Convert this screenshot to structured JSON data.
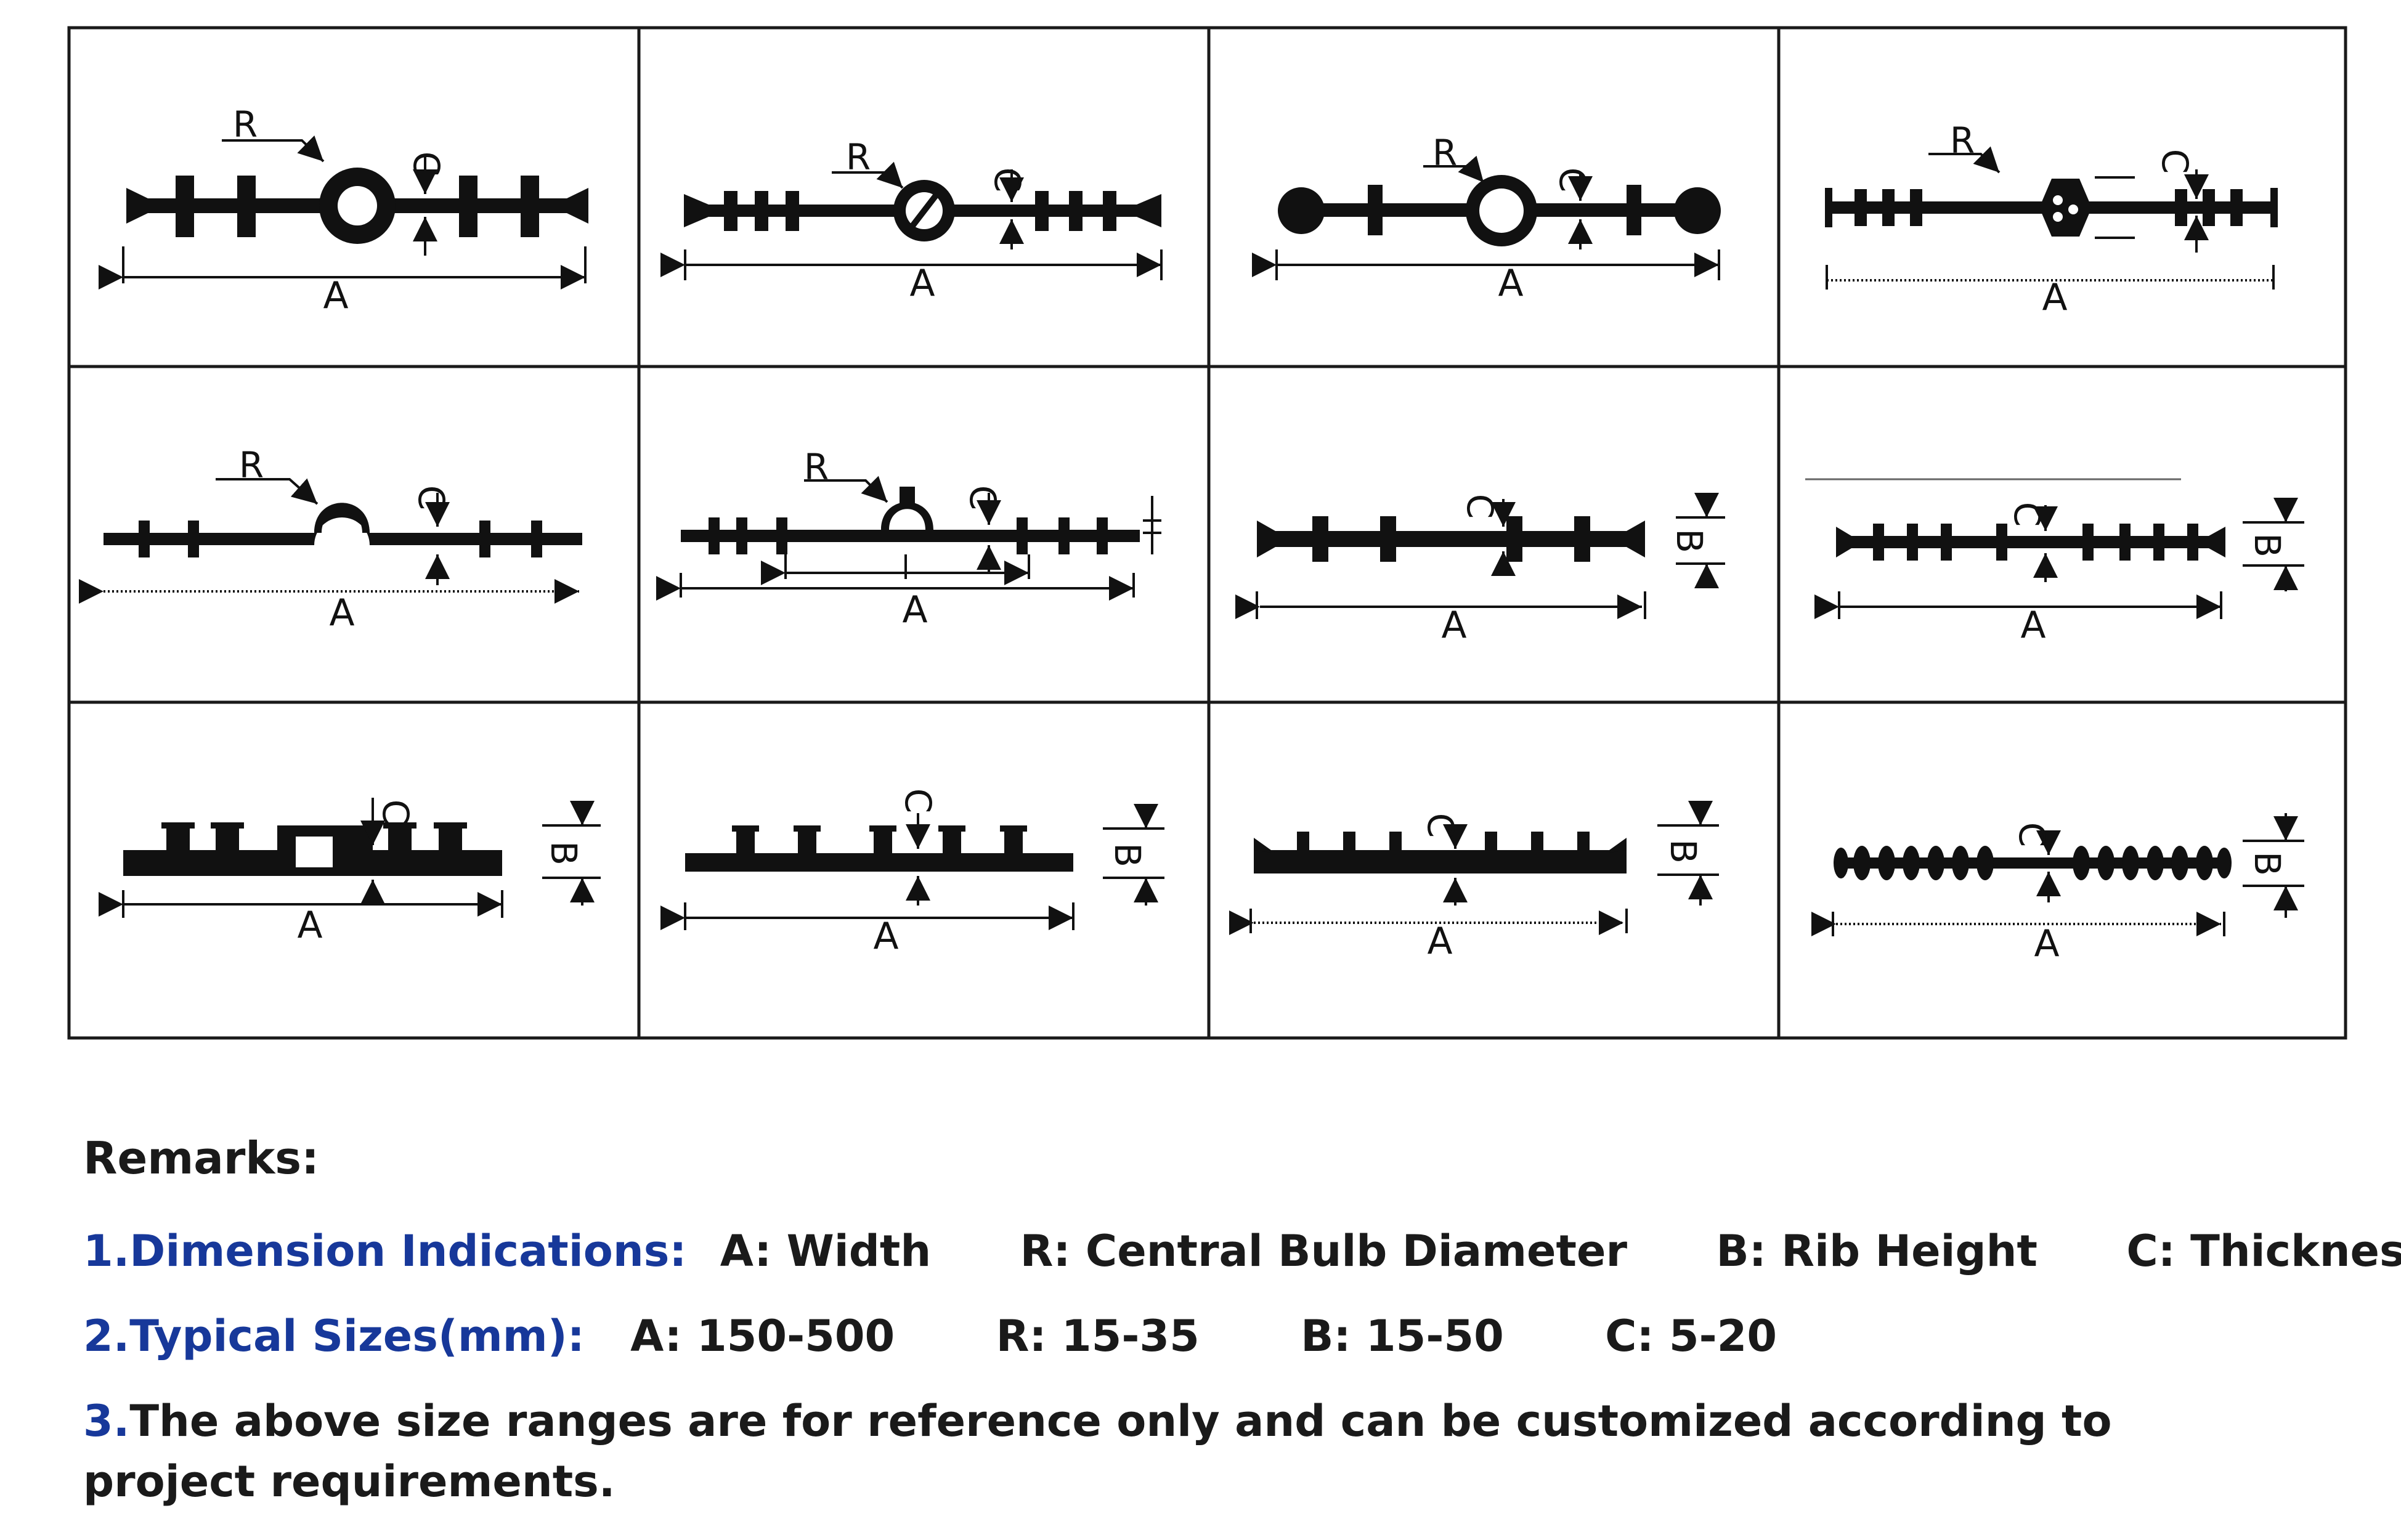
{
  "dimension_letters": {
    "width": "A",
    "bulb": "R",
    "rib": "B",
    "thickness": "C"
  },
  "remarks": {
    "title": "Remarks:",
    "line1": {
      "label": "1.Dimension Indications",
      "colon": ":",
      "items": [
        {
          "key": "A",
          "sep": ":",
          "text": "Width"
        },
        {
          "key": "R",
          "sep": ":",
          "text": "Central Bulb Diameter"
        },
        {
          "key": "B",
          "sep": ":",
          "text": "Rib Height"
        },
        {
          "key": "C",
          "sep": ":",
          "text": "Thickness"
        }
      ]
    },
    "line2": {
      "label": "2.Typical Sizes(mm):",
      "items": [
        {
          "key": "A",
          "text": "150-500"
        },
        {
          "key": "R",
          "text": "15-35"
        },
        {
          "key": "B",
          "text": "15-50"
        },
        {
          "key": "C",
          "text": "5-20"
        }
      ]
    },
    "line3": {
      "number": "3.",
      "text": "The above size ranges are for reference only and can be customized according to project requirements."
    }
  },
  "colors": {
    "ink": "#111111",
    "accent": "#17389a",
    "border": "#1a1a1a"
  }
}
